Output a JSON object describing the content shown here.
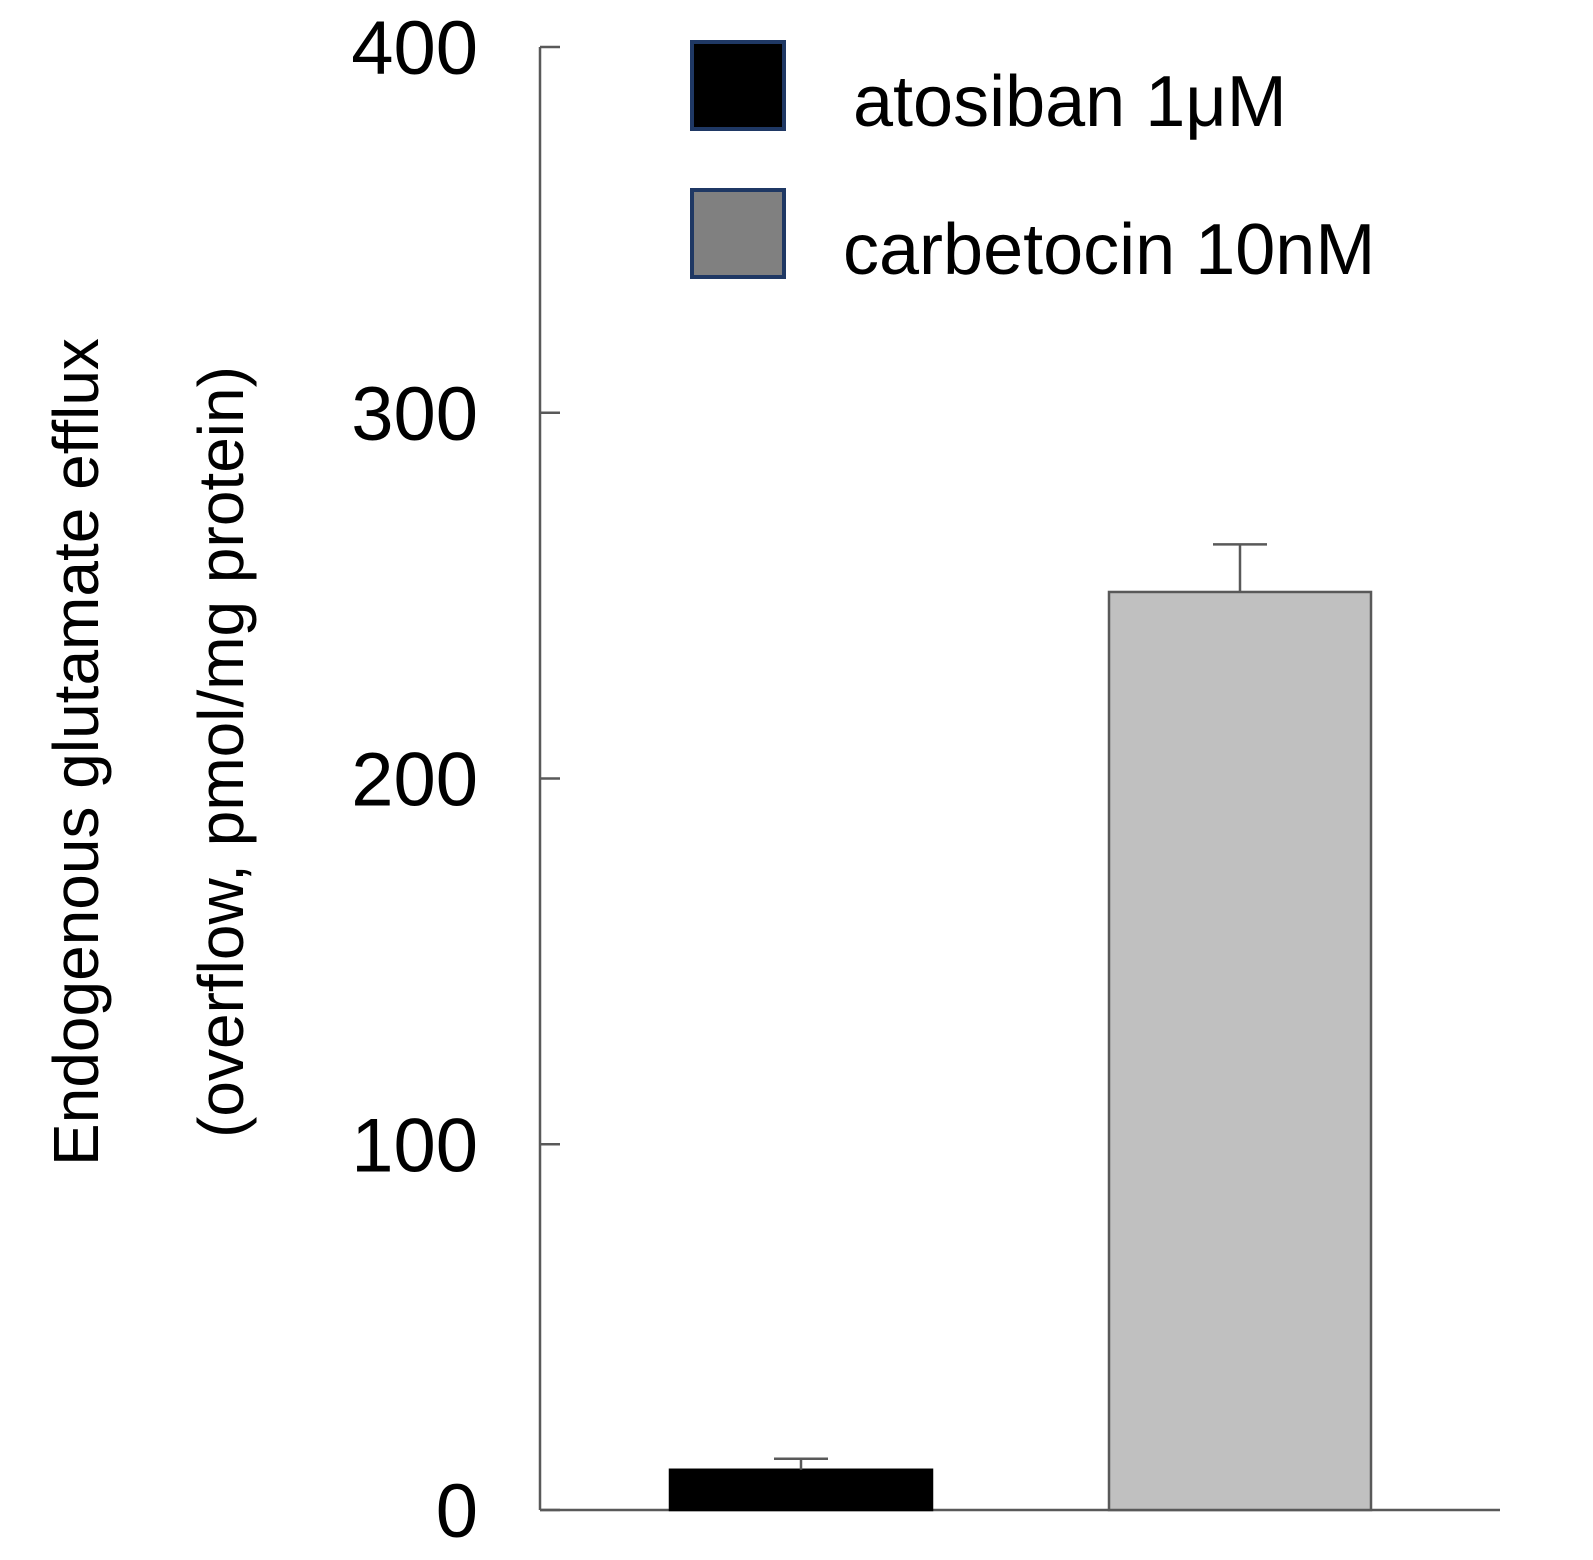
{
  "chart_data": {
    "type": "bar",
    "title": "",
    "xlabel": "",
    "ylabel_line1": "Endogenous glutamate efflux",
    "ylabel_line2": "(overflow, pmol/mg protein)",
    "ylim": [
      0,
      400
    ],
    "yticks": [
      0,
      100,
      200,
      300,
      400
    ],
    "legend_position": "top-right",
    "series": [
      {
        "name": "atosiban 1μM",
        "value": 11,
        "error": 3,
        "color": "#000000",
        "border": "#000000",
        "legend_color": "#000000"
      },
      {
        "name": "carbetocin 10nM",
        "value": 251,
        "error": 13,
        "color": "#c0c0c0",
        "border": "#595959",
        "legend_color": "#808080"
      }
    ],
    "legend_border_color": "#1f3864"
  }
}
